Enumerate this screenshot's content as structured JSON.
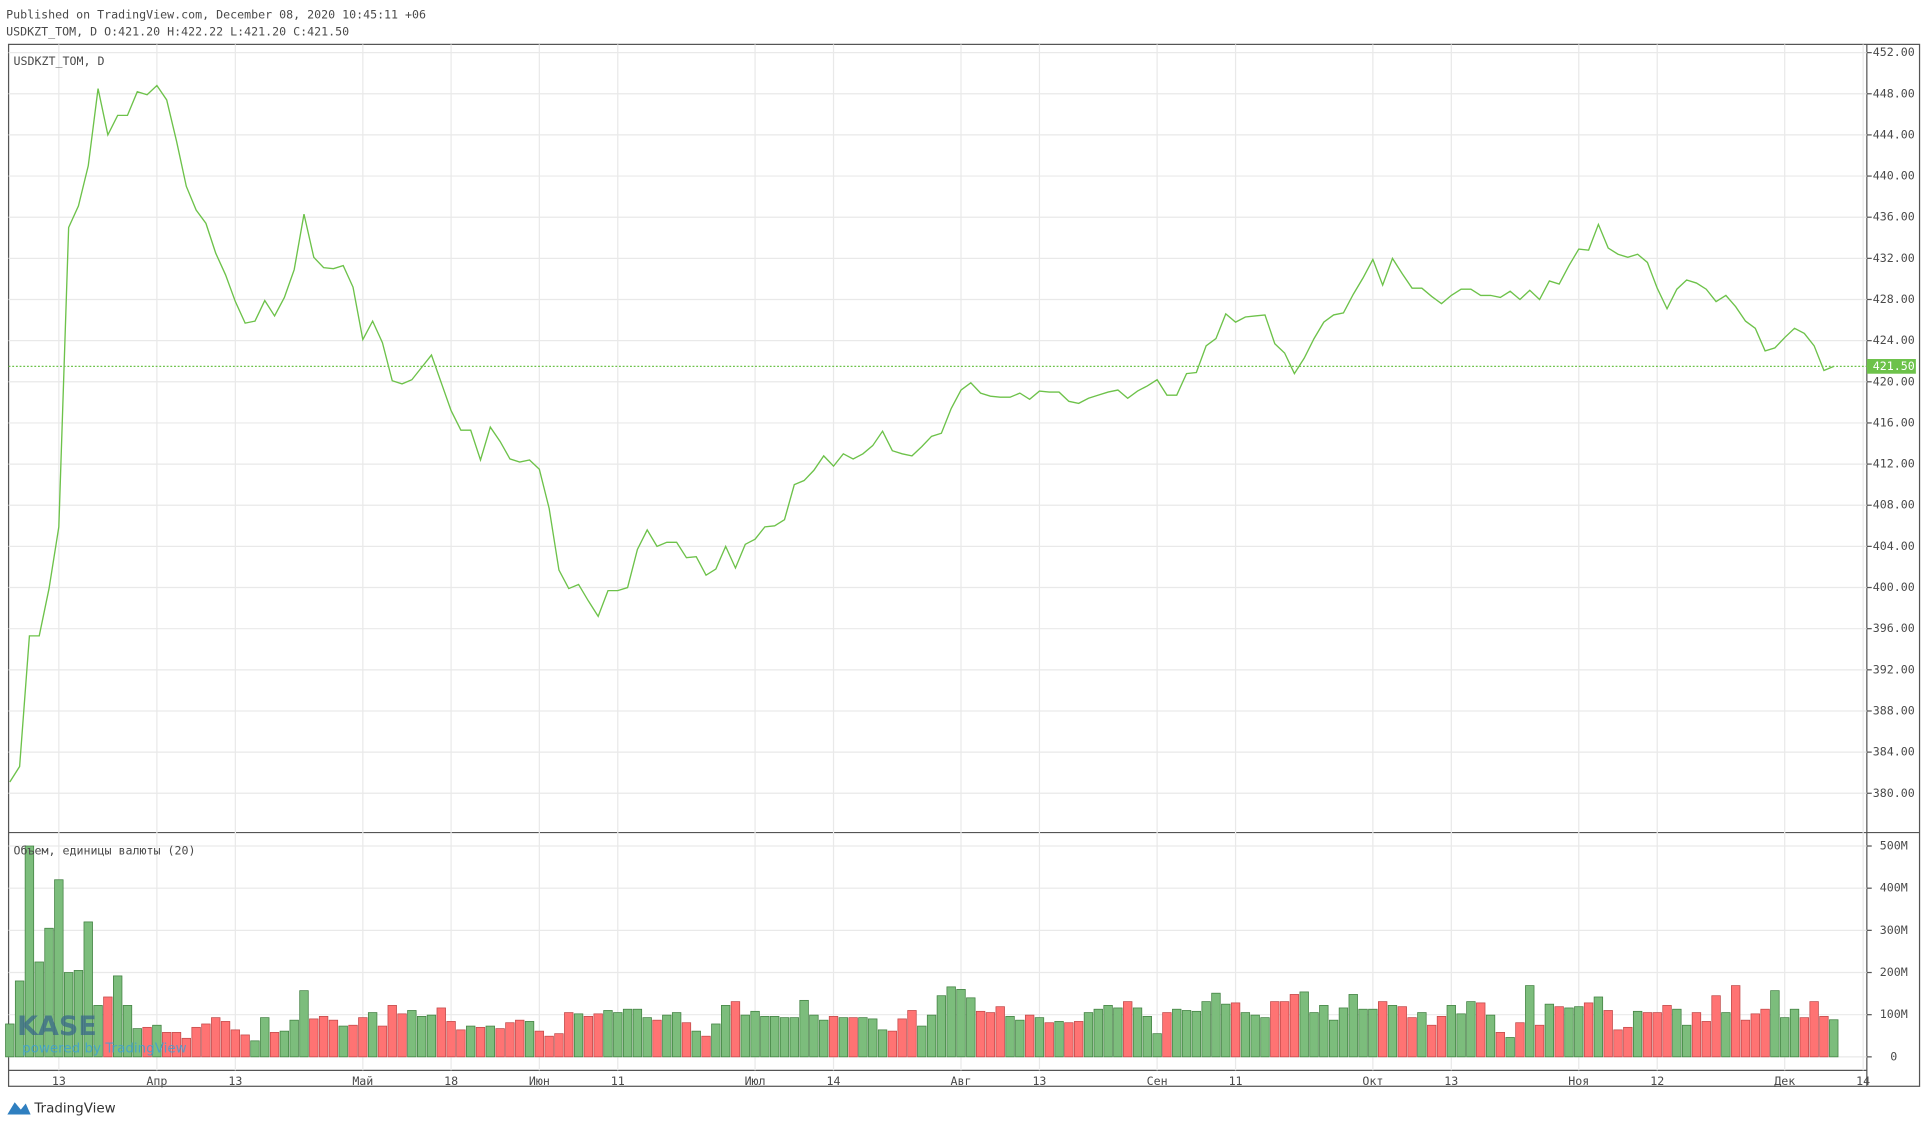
{
  "header": {
    "published": "Published on TradingView.com, December 08, 2020 10:45:11 +06",
    "ohlc": "USDKZT_TOM, D O:421.20 H:422.22 L:421.20 C:421.50"
  },
  "watermark": {
    "logo": "KASE",
    "powered": "powered by TradingView"
  },
  "footer": "TradingView",
  "chart_data": [
    {
      "type": "line",
      "categories": [
        null,
        null,
        null,
        null,
        null,
        "13",
        null,
        null,
        null,
        null,
        null,
        null,
        null,
        null,
        null,
        "Апр",
        null,
        null,
        null,
        null,
        null,
        null,
        null,
        "13",
        null,
        null,
        null,
        null,
        null,
        null,
        null,
        null,
        null,
        null,
        null,
        null,
        "Май",
        null,
        null,
        null,
        null,
        null,
        null,
        null,
        null,
        "18",
        null,
        null,
        null,
        null,
        null,
        null,
        null,
        null,
        "Июн",
        null,
        null,
        null,
        null,
        null,
        null,
        null,
        "11",
        null,
        null,
        null,
        null,
        null,
        null,
        null,
        null,
        null,
        null,
        null,
        null,
        null,
        "Июл",
        null,
        null,
        null,
        null,
        null,
        null,
        null,
        "14",
        null,
        null,
        null,
        null,
        null,
        null,
        null,
        null,
        null,
        null,
        null,
        null,
        "Авг",
        null,
        null,
        null,
        null,
        null,
        null,
        null,
        "13",
        null,
        null,
        null,
        null,
        null,
        null,
        null,
        null,
        null,
        null,
        null,
        "Сен",
        null,
        null,
        null,
        null,
        null,
        null,
        null,
        "11",
        null,
        null,
        null,
        null,
        null,
        null,
        null,
        null,
        null,
        null,
        null,
        null,
        null,
        "Окт",
        null,
        null,
        null,
        null,
        null,
        null,
        null,
        "13",
        null,
        null,
        null,
        null,
        null,
        null,
        null,
        null,
        null,
        null,
        null,
        null,
        "Ноя",
        null,
        null,
        null,
        null,
        null,
        null,
        null,
        "12",
        null,
        null,
        null,
        null,
        null,
        null,
        null,
        null,
        null,
        null,
        null,
        null,
        "Дек",
        null,
        null,
        null,
        null,
        null,
        null,
        null,
        "14"
      ],
      "series": [
        {
          "name": "USDKZT_TOM, D",
          "color": "#6dc24a",
          "values": [
            381.1,
            382.6,
            395.3,
            395.3,
            399.9,
            405.9,
            435,
            437.1,
            441,
            448.5,
            444,
            445.9,
            445.9,
            448.2,
            447.9,
            448.8,
            447.4,
            443.4,
            439,
            436.7,
            435.4,
            432.5,
            430.4,
            427.8,
            425.7,
            425.9,
            427.9,
            426.4,
            428.2,
            430.9,
            436.3,
            432.1,
            431.1,
            431,
            431.3,
            429.2,
            424.1,
            425.9,
            423.8,
            420.1,
            419.8,
            420.2,
            421.4,
            422.6,
            419.9,
            417.2,
            415.3,
            415.3,
            412.4,
            415.6,
            414.2,
            412.5,
            412.2,
            412.4,
            411.5,
            407.7,
            401.7,
            399.9,
            400.3,
            398.7,
            397.2,
            399.7,
            399.7,
            400,
            403.7,
            405.6,
            404,
            404.4,
            404.4,
            402.9,
            403,
            401.2,
            401.8,
            404,
            401.9,
            404.2,
            404.7,
            405.9,
            406,
            406.6,
            410,
            410.4,
            411.4,
            412.8,
            411.8,
            413,
            412.5,
            413,
            413.8,
            415.2,
            413.3,
            413,
            412.8,
            413.7,
            414.7,
            415,
            417.4,
            419.2,
            419.9,
            418.9,
            418.6,
            418.5,
            418.5,
            418.9,
            418.3,
            419.1,
            419,
            419,
            418.1,
            417.9,
            418.4,
            418.7,
            419,
            419.2,
            418.4,
            419.1,
            419.6,
            420.2,
            418.7,
            418.7,
            420.8,
            420.9,
            423.5,
            424.2,
            426.6,
            425.8,
            426.3,
            426.4,
            426.5,
            423.7,
            422.8,
            420.8,
            422.3,
            424.2,
            425.8,
            426.5,
            426.7,
            428.5,
            430.1,
            431.9,
            429.4,
            432,
            430.5,
            429.1,
            429.1,
            428.3,
            427.6,
            428.4,
            429,
            429,
            428.4,
            428.4,
            428.2,
            428.8,
            428,
            428.9,
            428,
            429.8,
            429.5,
            431.3,
            432.9,
            432.8,
            435.3,
            433,
            432.4,
            432.1,
            432.4,
            431.6,
            429.1,
            427.1,
            429,
            429.9,
            429.6,
            429,
            427.8,
            428.4,
            427.3,
            425.9,
            425.2,
            423,
            423.3,
            424.3,
            425.2,
            424.7,
            423.5,
            421.1,
            421.5,
            null,
            null,
            null
          ]
        }
      ],
      "ylim": [
        376.3,
        452.8
      ],
      "yticks": [
        {
          "value": 380,
          "label": "380.00"
        },
        {
          "value": 384,
          "label": "384.00"
        },
        {
          "value": 388,
          "label": "388.00"
        },
        {
          "value": 392,
          "label": "392.00"
        },
        {
          "value": 396,
          "label": "396.00"
        },
        {
          "value": 400,
          "label": "400.00"
        },
        {
          "value": 404,
          "label": "404.00"
        },
        {
          "value": 408,
          "label": "408.00"
        },
        {
          "value": 412,
          "label": "412.00"
        },
        {
          "value": 416,
          "label": "416.00"
        },
        {
          "value": 420,
          "label": "420.00"
        },
        {
          "value": 424,
          "label": "424.00"
        },
        {
          "value": 428,
          "label": "428.00"
        },
        {
          "value": 432,
          "label": "432.00"
        },
        {
          "value": 436,
          "label": "436.00"
        },
        {
          "value": 440,
          "label": "440.00"
        },
        {
          "value": 444,
          "label": "444.00"
        },
        {
          "value": 448,
          "label": "448.00"
        },
        {
          "value": 452,
          "label": "452.00"
        }
      ],
      "price_label": {
        "value": 421.5,
        "label": "421.50"
      },
      "grid": true
    },
    {
      "type": "bar",
      "title": "Объем, единицы валюты (20)",
      "up_color": "#7cbd7c",
      "down_color": "#ff7373",
      "values": [
        78,
        180,
        500,
        225,
        305,
        420,
        200,
        205,
        320,
        122,
        142,
        192,
        122,
        67,
        70,
        75,
        58,
        58,
        44,
        70,
        78,
        93,
        84,
        64,
        52,
        38,
        93,
        58,
        61,
        87,
        157,
        90,
        96,
        87,
        73,
        75,
        93,
        105,
        73,
        122,
        102,
        110,
        96,
        99,
        116,
        84,
        64,
        73,
        70,
        73,
        67,
        81,
        87,
        84,
        61,
        49,
        55,
        105,
        102,
        96,
        102,
        110,
        105,
        113,
        113,
        93,
        87,
        99,
        105,
        81,
        61,
        49,
        78,
        122,
        131,
        99,
        108,
        96,
        96,
        93,
        93,
        134,
        99,
        87,
        96,
        93,
        93,
        93,
        90,
        64,
        61,
        90,
        110,
        73,
        99,
        145,
        166,
        160,
        140,
        108,
        105,
        119,
        96,
        87,
        99,
        93,
        81,
        84,
        81,
        84,
        105,
        113,
        122,
        116,
        131,
        116,
        96,
        55,
        105,
        113,
        110,
        108,
        131,
        151,
        125,
        128,
        105,
        99,
        93,
        131,
        131,
        148,
        154,
        105,
        122,
        87,
        116,
        148,
        113,
        113,
        131,
        122,
        119,
        93,
        105,
        75,
        96,
        122,
        102,
        131,
        128,
        99,
        58,
        46,
        81,
        169,
        75,
        125,
        119,
        116,
        119,
        128,
        142,
        110,
        64,
        70,
        108,
        105,
        105,
        122,
        113,
        75,
        105,
        84,
        145,
        105,
        169,
        87,
        102,
        113,
        157,
        93,
        113,
        93,
        131,
        96,
        88,
        null,
        null,
        null
      ],
      "ylim": [
        -32,
        529
      ],
      "yticks": [
        0,
        {
          "value": 100,
          "label": "100M"
        },
        {
          "value": 200,
          "label": "200M"
        },
        {
          "value": 300,
          "label": "300M"
        },
        {
          "value": 400,
          "label": "400M"
        },
        {
          "value": 500,
          "label": "500M"
        }
      ],
      "grid": true
    }
  ]
}
